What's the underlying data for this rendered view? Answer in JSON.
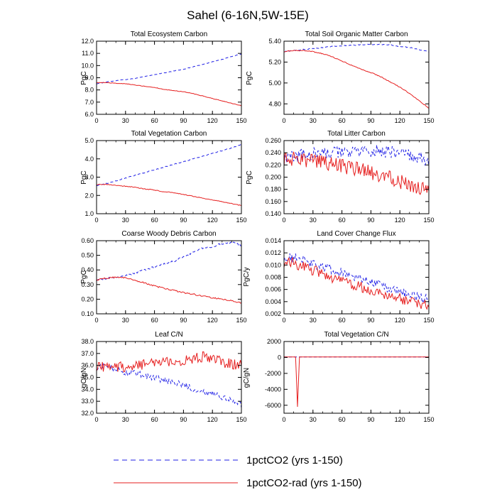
{
  "figure_title": "Sahel (6-16N,5W-15E)",
  "legend": [
    {
      "label": "1pctCO2 (yrs 1-150)",
      "color": "#1f1fe6",
      "style": "dashed"
    },
    {
      "label": "1pctCO2-rad (yrs 1-150)",
      "color": "#e61f1f",
      "style": "solid"
    }
  ],
  "chart_data": [
    {
      "type": "line",
      "title": "Total Ecosystem Carbon",
      "ylabel": "PgC",
      "xlim": [
        0,
        150
      ],
      "ylim": [
        6.0,
        12.0
      ],
      "xticks": [
        "0",
        "30",
        "60",
        "90",
        "120",
        "150"
      ],
      "yticks": [
        "6.0",
        "7.0",
        "8.0",
        "9.0",
        "10.0",
        "11.0",
        "12.0"
      ],
      "x": [
        0,
        10,
        20,
        30,
        40,
        50,
        60,
        70,
        80,
        90,
        100,
        110,
        120,
        130,
        140,
        150
      ],
      "series": [
        {
          "values": [
            8.5,
            8.65,
            8.75,
            8.85,
            8.95,
            9.1,
            9.25,
            9.4,
            9.55,
            9.7,
            9.9,
            10.1,
            10.3,
            10.5,
            10.75,
            10.95
          ],
          "noise": 0.02
        },
        {
          "values": [
            8.6,
            8.6,
            8.55,
            8.5,
            8.4,
            8.3,
            8.2,
            8.05,
            7.95,
            7.85,
            7.7,
            7.5,
            7.3,
            7.1,
            6.9,
            6.7
          ],
          "noise": 0.02
        }
      ]
    },
    {
      "type": "line",
      "title": "Total Soil Organic Matter Carbon",
      "ylabel": "PgC",
      "xlim": [
        0,
        150
      ],
      "ylim": [
        4.7,
        5.4
      ],
      "xticks": [
        "0",
        "30",
        "60",
        "90",
        "120",
        "150"
      ],
      "yticks": [
        "4.80",
        "5.00",
        "5.20",
        "5.40"
      ],
      "x": [
        0,
        10,
        20,
        30,
        40,
        50,
        60,
        70,
        80,
        90,
        100,
        110,
        120,
        130,
        140,
        150
      ],
      "series": [
        {
          "values": [
            5.3,
            5.31,
            5.32,
            5.33,
            5.34,
            5.35,
            5.355,
            5.36,
            5.365,
            5.37,
            5.37,
            5.365,
            5.35,
            5.34,
            5.32,
            5.3
          ],
          "noise": 0.004
        },
        {
          "values": [
            5.3,
            5.31,
            5.31,
            5.3,
            5.28,
            5.25,
            5.21,
            5.17,
            5.13,
            5.1,
            5.06,
            5.01,
            4.96,
            4.9,
            4.83,
            4.76
          ],
          "noise": 0.004
        }
      ]
    },
    {
      "type": "line",
      "title": "Total Vegetation Carbon",
      "ylabel": "PgC",
      "xlim": [
        0,
        150
      ],
      "ylim": [
        1.0,
        5.0
      ],
      "xticks": [
        "0",
        "30",
        "60",
        "90",
        "120",
        "150"
      ],
      "yticks": [
        "1.0",
        "2.0",
        "3.0",
        "4.0",
        "5.0"
      ],
      "x": [
        0,
        10,
        20,
        30,
        40,
        50,
        60,
        70,
        80,
        90,
        100,
        110,
        120,
        130,
        140,
        150
      ],
      "series": [
        {
          "values": [
            2.55,
            2.65,
            2.8,
            2.95,
            3.1,
            3.25,
            3.4,
            3.55,
            3.7,
            3.85,
            4.0,
            4.15,
            4.3,
            4.45,
            4.6,
            4.8
          ],
          "noise": 0.02
        },
        {
          "values": [
            2.6,
            2.6,
            2.55,
            2.5,
            2.45,
            2.35,
            2.3,
            2.2,
            2.15,
            2.05,
            1.95,
            1.85,
            1.75,
            1.65,
            1.55,
            1.45
          ],
          "noise": 0.02
        }
      ]
    },
    {
      "type": "line",
      "title": "Total Litter Carbon",
      "ylabel": "PgC",
      "xlim": [
        0,
        150
      ],
      "ylim": [
        0.14,
        0.26
      ],
      "xticks": [
        "0",
        "30",
        "60",
        "90",
        "120",
        "150"
      ],
      "yticks": [
        "0.140",
        "0.160",
        "0.180",
        "0.200",
        "0.220",
        "0.240",
        "0.260"
      ],
      "x": [
        0,
        10,
        20,
        30,
        40,
        50,
        60,
        70,
        80,
        90,
        100,
        110,
        120,
        130,
        140,
        150
      ],
      "series": [
        {
          "values": [
            0.23,
            0.234,
            0.236,
            0.238,
            0.238,
            0.24,
            0.24,
            0.241,
            0.242,
            0.243,
            0.243,
            0.241,
            0.24,
            0.236,
            0.232,
            0.226
          ],
          "noise": 0.01
        },
        {
          "values": [
            0.23,
            0.23,
            0.228,
            0.226,
            0.224,
            0.222,
            0.218,
            0.214,
            0.212,
            0.207,
            0.203,
            0.198,
            0.193,
            0.188,
            0.183,
            0.178
          ],
          "noise": 0.012
        }
      ]
    },
    {
      "type": "line",
      "title": "Coarse Woody Debris Carbon",
      "ylabel": "PgC",
      "xlim": [
        0,
        150
      ],
      "ylim": [
        0.1,
        0.6
      ],
      "xticks": [
        "0",
        "30",
        "60",
        "90",
        "120",
        "150"
      ],
      "yticks": [
        "0.10",
        "0.20",
        "0.30",
        "0.40",
        "0.50",
        "0.60"
      ],
      "x": [
        0,
        10,
        20,
        30,
        40,
        50,
        60,
        70,
        80,
        90,
        100,
        110,
        120,
        130,
        140,
        150
      ],
      "series": [
        {
          "values": [
            0.33,
            0.34,
            0.35,
            0.36,
            0.38,
            0.4,
            0.42,
            0.44,
            0.46,
            0.49,
            0.52,
            0.55,
            0.56,
            0.58,
            0.59,
            0.57
          ],
          "noise": 0.006
        },
        {
          "values": [
            0.33,
            0.345,
            0.35,
            0.345,
            0.33,
            0.31,
            0.29,
            0.275,
            0.26,
            0.245,
            0.235,
            0.22,
            0.21,
            0.2,
            0.19,
            0.175
          ],
          "noise": 0.005
        }
      ]
    },
    {
      "type": "line",
      "title": "Land Cover Change Flux",
      "ylabel": "PgC/y",
      "xlim": [
        0,
        150
      ],
      "ylim": [
        0.002,
        0.014
      ],
      "xticks": [
        "0",
        "30",
        "60",
        "90",
        "120",
        "150"
      ],
      "yticks": [
        "0.002",
        "0.004",
        "0.006",
        "0.008",
        "0.010",
        "0.012",
        "0.014"
      ],
      "x": [
        0,
        10,
        20,
        30,
        40,
        50,
        60,
        70,
        80,
        90,
        100,
        110,
        120,
        130,
        140,
        150
      ],
      "series": [
        {
          "values": [
            0.0115,
            0.0112,
            0.0108,
            0.0102,
            0.0097,
            0.0092,
            0.0088,
            0.0083,
            0.0078,
            0.0072,
            0.0066,
            0.006,
            0.0056,
            0.0052,
            0.0047,
            0.0045
          ],
          "noise": 0.0008
        },
        {
          "values": [
            0.0105,
            0.0103,
            0.0098,
            0.0092,
            0.0086,
            0.008,
            0.0074,
            0.0069,
            0.0064,
            0.0059,
            0.0055,
            0.005,
            0.0045,
            0.004,
            0.0036,
            0.0032
          ],
          "noise": 0.0009
        }
      ]
    },
    {
      "type": "line",
      "title": "Leaf C/N",
      "ylabel": "gC/gN",
      "xlim": [
        0,
        150
      ],
      "ylim": [
        32.0,
        38.0
      ],
      "xticks": [
        "0",
        "30",
        "60",
        "90",
        "120",
        "150"
      ],
      "yticks": [
        "32.0",
        "33.0",
        "34.0",
        "35.0",
        "36.0",
        "37.0",
        "38.0"
      ],
      "x": [
        0,
        10,
        20,
        30,
        40,
        50,
        60,
        70,
        80,
        90,
        100,
        110,
        120,
        130,
        140,
        150
      ],
      "series": [
        {
          "values": [
            35.9,
            35.8,
            35.6,
            35.4,
            35.3,
            35.1,
            35.0,
            34.8,
            34.6,
            34.3,
            34.1,
            33.8,
            33.6,
            33.3,
            33.0,
            32.7
          ],
          "noise": 0.3
        },
        {
          "values": [
            36.0,
            35.9,
            35.9,
            35.9,
            36.0,
            36.1,
            36.2,
            36.2,
            36.3,
            36.4,
            36.6,
            36.7,
            36.5,
            36.3,
            36.1,
            36.0
          ],
          "noise": 0.45
        }
      ]
    },
    {
      "type": "line",
      "title": "Total Vegetation C/N",
      "ylabel": "gC/gN",
      "xlim": [
        0,
        150
      ],
      "ylim": [
        -7000,
        2000
      ],
      "xticks": [
        "0",
        "30",
        "60",
        "90",
        "120",
        "150"
      ],
      "yticks": [
        "-6000",
        "-4000",
        "-2000",
        "0",
        "2000"
      ],
      "x": [
        0,
        12,
        13,
        14,
        15,
        16,
        150
      ],
      "series": [
        {
          "values": [
            60,
            60,
            60,
            60,
            60,
            60,
            60
          ],
          "noise": 0
        },
        {
          "values": [
            60,
            60,
            -3000,
            -6200,
            -3000,
            60,
            60
          ],
          "noise": 0
        }
      ]
    }
  ]
}
